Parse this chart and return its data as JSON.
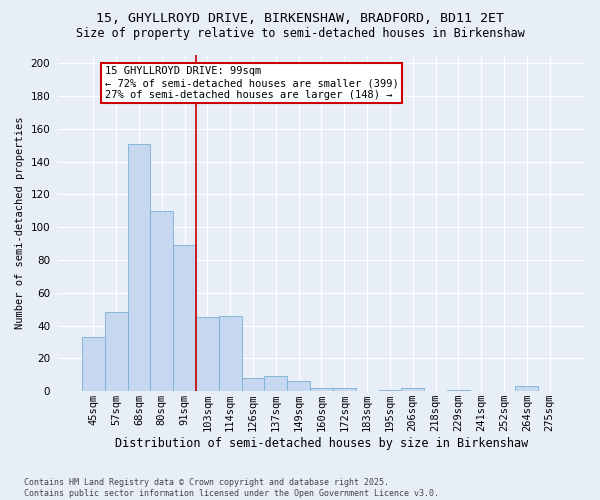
{
  "title_line1": "15, GHYLLROYD DRIVE, BIRKENSHAW, BRADFORD, BD11 2ET",
  "title_line2": "Size of property relative to semi-detached houses in Birkenshaw",
  "xlabel": "Distribution of semi-detached houses by size in Birkenshaw",
  "ylabel": "Number of semi-detached properties",
  "categories": [
    "45sqm",
    "57sqm",
    "68sqm",
    "80sqm",
    "91sqm",
    "103sqm",
    "114sqm",
    "126sqm",
    "137sqm",
    "149sqm",
    "160sqm",
    "172sqm",
    "183sqm",
    "195sqm",
    "206sqm",
    "218sqm",
    "229sqm",
    "241sqm",
    "252sqm",
    "264sqm",
    "275sqm"
  ],
  "values": [
    33,
    48,
    151,
    110,
    89,
    45,
    46,
    8,
    9,
    6,
    2,
    2,
    0,
    1,
    2,
    0,
    1,
    0,
    0,
    3,
    0
  ],
  "bar_color": "#c5d8ef",
  "bar_edge_color": "#7aafd4",
  "annotation_text": "15 GHYLLROYD DRIVE: 99sqm\n← 72% of semi-detached houses are smaller (399)\n27% of semi-detached houses are larger (148) →",
  "annotation_box_color": "#ffffff",
  "annotation_box_edge_color": "#cc0000",
  "vline_color": "#cc0000",
  "footer_text": "Contains HM Land Registry data © Crown copyright and database right 2025.\nContains public sector information licensed under the Open Government Licence v3.0.",
  "ylim": [
    0,
    205
  ],
  "yticks": [
    0,
    20,
    40,
    60,
    80,
    100,
    120,
    140,
    160,
    180,
    200
  ],
  "background_color": "#e8eef7",
  "grid_color": "#ffffff",
  "title_fontsize": 9.5,
  "subtitle_fontsize": 8.5,
  "ylabel_fontsize": 7.5,
  "xlabel_fontsize": 8.5,
  "tick_fontsize": 7.5,
  "footer_fontsize": 6.0,
  "annot_fontsize": 7.5,
  "vline_x_index": 4.5
}
